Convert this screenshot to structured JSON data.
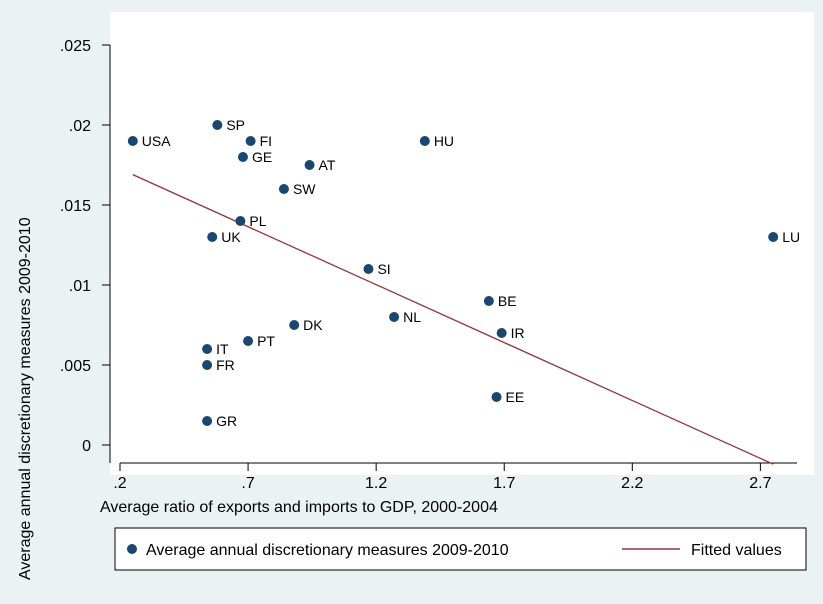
{
  "chart_data": {
    "type": "scatter",
    "xlabel": "Average ratio of exports and imports to GDP, 2000-2004",
    "ylabel": "Average annual discretionary measures 2009-2010",
    "xlim": [
      0.2,
      2.8
    ],
    "ylim": [
      0,
      0.025
    ],
    "x_ticks": [
      0.2,
      0.7,
      1.2,
      1.7,
      2.2,
      2.7
    ],
    "x_tick_labels": [
      ".2",
      ".7",
      "1.2",
      "1.7",
      "2.2",
      "2.7"
    ],
    "y_ticks": [
      0,
      0.005,
      0.01,
      0.015,
      0.02,
      0.025
    ],
    "y_tick_labels": [
      "0",
      ".005",
      ".01",
      ".015",
      ".02",
      ".025"
    ],
    "grid": false,
    "legend_position": "bottom",
    "series": [
      {
        "name": "Average annual discretionary measures 2009-2010",
        "type": "scatter",
        "color": "#1a476f",
        "points": [
          {
            "label": "USA",
            "x": 0.25,
            "y": 0.019
          },
          {
            "label": "SP",
            "x": 0.58,
            "y": 0.02
          },
          {
            "label": "FI",
            "x": 0.71,
            "y": 0.019
          },
          {
            "label": "GE",
            "x": 0.68,
            "y": 0.018
          },
          {
            "label": "AT",
            "x": 0.94,
            "y": 0.0175
          },
          {
            "label": "HU",
            "x": 1.39,
            "y": 0.019
          },
          {
            "label": "SW",
            "x": 0.84,
            "y": 0.016
          },
          {
            "label": "PL",
            "x": 0.67,
            "y": 0.014
          },
          {
            "label": "UK",
            "x": 0.56,
            "y": 0.013
          },
          {
            "label": "LU",
            "x": 2.75,
            "y": 0.013
          },
          {
            "label": "SI",
            "x": 1.17,
            "y": 0.011
          },
          {
            "label": "BE",
            "x": 1.64,
            "y": 0.009
          },
          {
            "label": "NL",
            "x": 1.27,
            "y": 0.008
          },
          {
            "label": "IR",
            "x": 1.69,
            "y": 0.007
          },
          {
            "label": "DK",
            "x": 0.88,
            "y": 0.0075
          },
          {
            "label": "PT",
            "x": 0.7,
            "y": 0.0065
          },
          {
            "label": "IT",
            "x": 0.54,
            "y": 0.006
          },
          {
            "label": "FR",
            "x": 0.54,
            "y": 0.005
          },
          {
            "label": "EE",
            "x": 1.67,
            "y": 0.003
          },
          {
            "label": "GR",
            "x": 0.54,
            "y": 0.0015
          }
        ]
      },
      {
        "name": "Fitted values",
        "type": "line",
        "color": "#90353b",
        "points": [
          {
            "x": 0.25,
            "y": 0.0169
          },
          {
            "x": 2.75,
            "y": -0.0012
          }
        ]
      }
    ]
  }
}
